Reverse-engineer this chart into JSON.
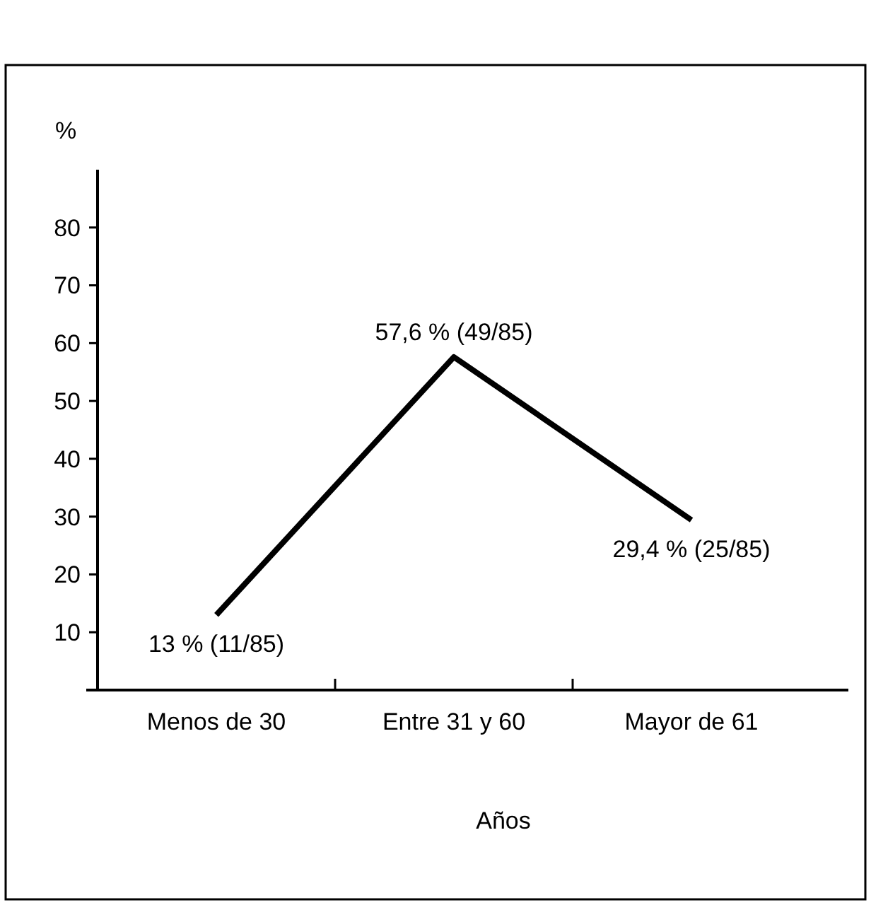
{
  "chart_data": {
    "type": "line",
    "xlabel": "Años",
    "ylabel": "%",
    "categories": [
      "Menos de 30",
      "Entre 31 y 60",
      "Mayor de 61"
    ],
    "values": [
      13,
      57.6,
      29.4
    ],
    "value_labels": [
      "13 % (11/85)",
      "57,6 % (49/85)",
      "29,4 % (25/85)"
    ],
    "color": "#000000",
    "ylim": [
      0,
      90
    ],
    "yticks": [
      10,
      20,
      30,
      40,
      50,
      60,
      70,
      80
    ],
    "grid": false,
    "marker": "none",
    "line_style": "solid"
  }
}
